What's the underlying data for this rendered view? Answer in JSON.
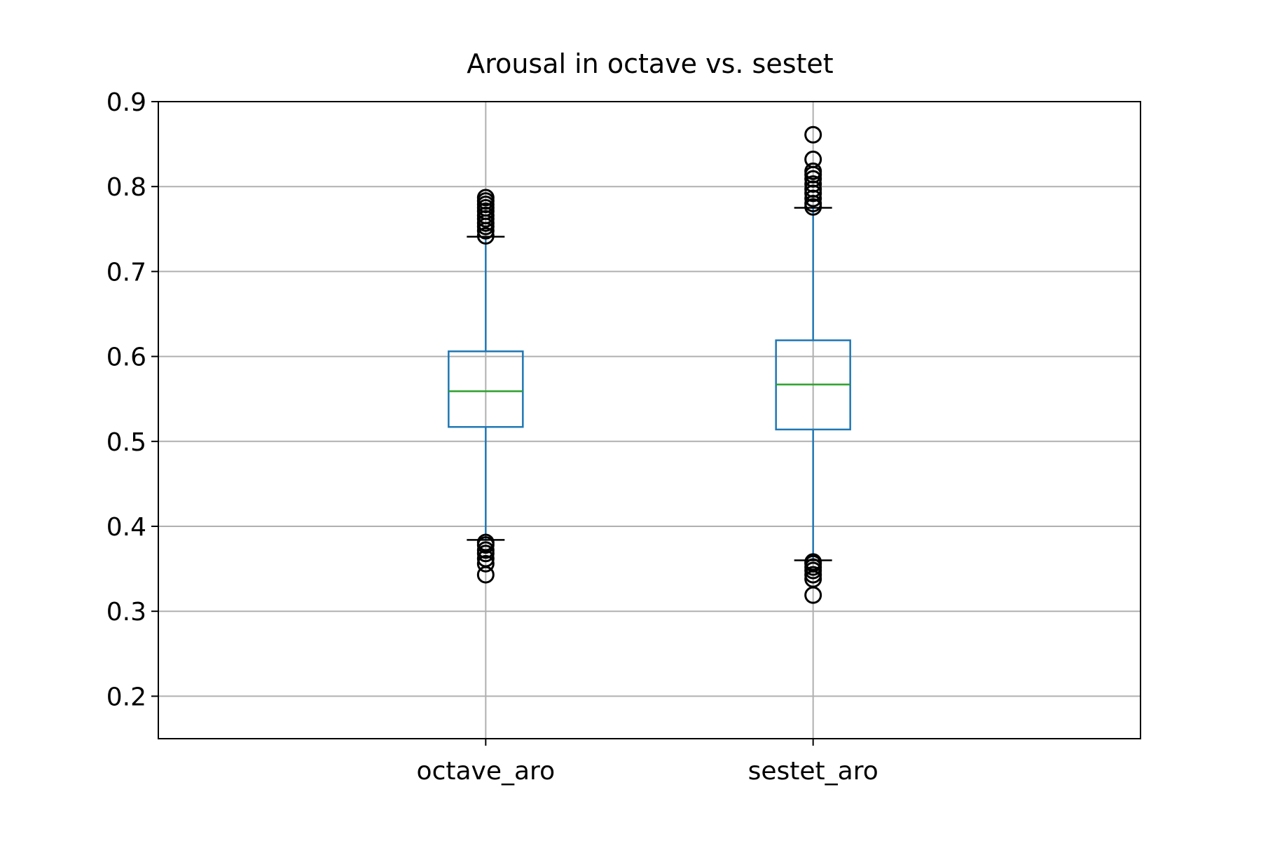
{
  "chart_data": {
    "type": "box",
    "title": "Arousal in octave vs. sestet",
    "xlabel": "",
    "ylabel": "",
    "categories": [
      "octave_aro",
      "sestet_aro"
    ],
    "ylim": [
      0.15,
      0.9
    ],
    "yticks": [
      0.2,
      0.3,
      0.4,
      0.5,
      0.6,
      0.7,
      0.8,
      0.9
    ],
    "ytick_labels": [
      "0.2",
      "0.3",
      "0.4",
      "0.5",
      "0.6",
      "0.7",
      "0.8",
      "0.9"
    ],
    "grid": true,
    "boxes": [
      {
        "name": "octave_aro",
        "whisker_low": 0.384,
        "q1": 0.517,
        "median": 0.559,
        "q3": 0.606,
        "whisker_high": 0.741,
        "outliers": [
          0.343,
          0.356,
          0.362,
          0.368,
          0.372,
          0.378,
          0.381,
          0.742,
          0.748,
          0.753,
          0.757,
          0.762,
          0.766,
          0.771,
          0.775,
          0.779,
          0.783,
          0.787
        ]
      },
      {
        "name": "sestet_aro",
        "whisker_low": 0.36,
        "q1": 0.514,
        "median": 0.567,
        "q3": 0.619,
        "whisker_high": 0.775,
        "outliers": [
          0.319,
          0.338,
          0.343,
          0.348,
          0.352,
          0.356,
          0.358,
          0.776,
          0.78,
          0.786,
          0.792,
          0.797,
          0.803,
          0.809,
          0.814,
          0.818,
          0.832,
          0.861
        ]
      }
    ],
    "colors": {
      "box": "#1f77b4",
      "median": "#2ca02c",
      "caps": "#000000",
      "outliers": "#000000",
      "grid": "#b0b0b0",
      "axes": "#000000"
    }
  }
}
